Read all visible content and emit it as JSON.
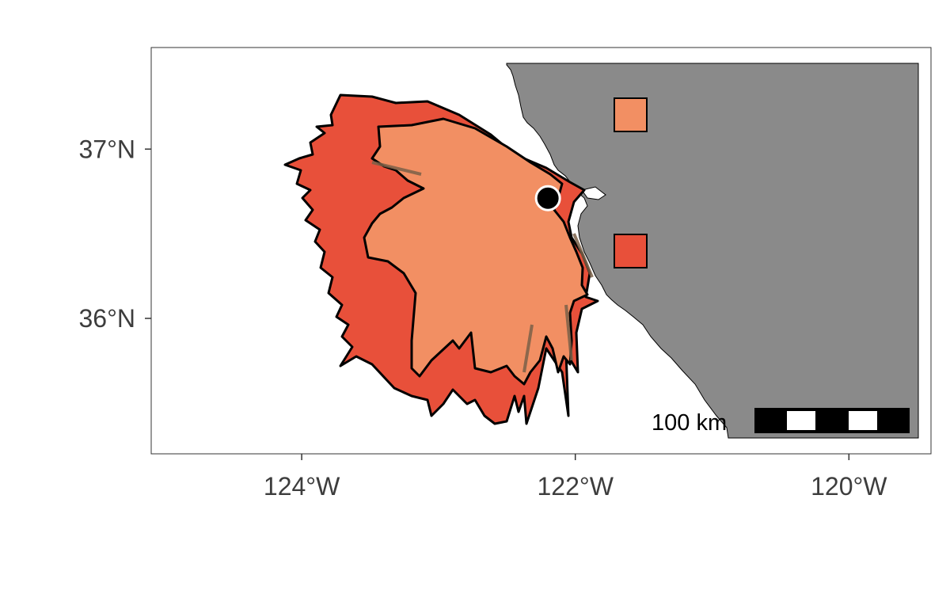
{
  "map": {
    "axes": {
      "x_ticks": [
        "124°W",
        "122°W",
        "120°W"
      ],
      "y_ticks": [
        "37°N",
        "36°N"
      ],
      "x_tick_values": [
        -124,
        -122,
        -120
      ],
      "y_tick_values": [
        37,
        36
      ],
      "xlim": [
        -125.1,
        -119.4
      ],
      "ylim": [
        35.2,
        37.6
      ]
    },
    "scale_bar": {
      "label": "100 km",
      "segments": 5
    },
    "station_marker": {
      "lon": -122.2,
      "lat": 36.71,
      "color": "#000000"
    },
    "colors": {
      "land": "#8a8a8a",
      "outer_region": "#e8503a",
      "inner_region": "#f28f63",
      "legend_swatch_upper": "#f28f63",
      "legend_swatch_lower": "#e8503a",
      "frame": "#333333"
    }
  }
}
